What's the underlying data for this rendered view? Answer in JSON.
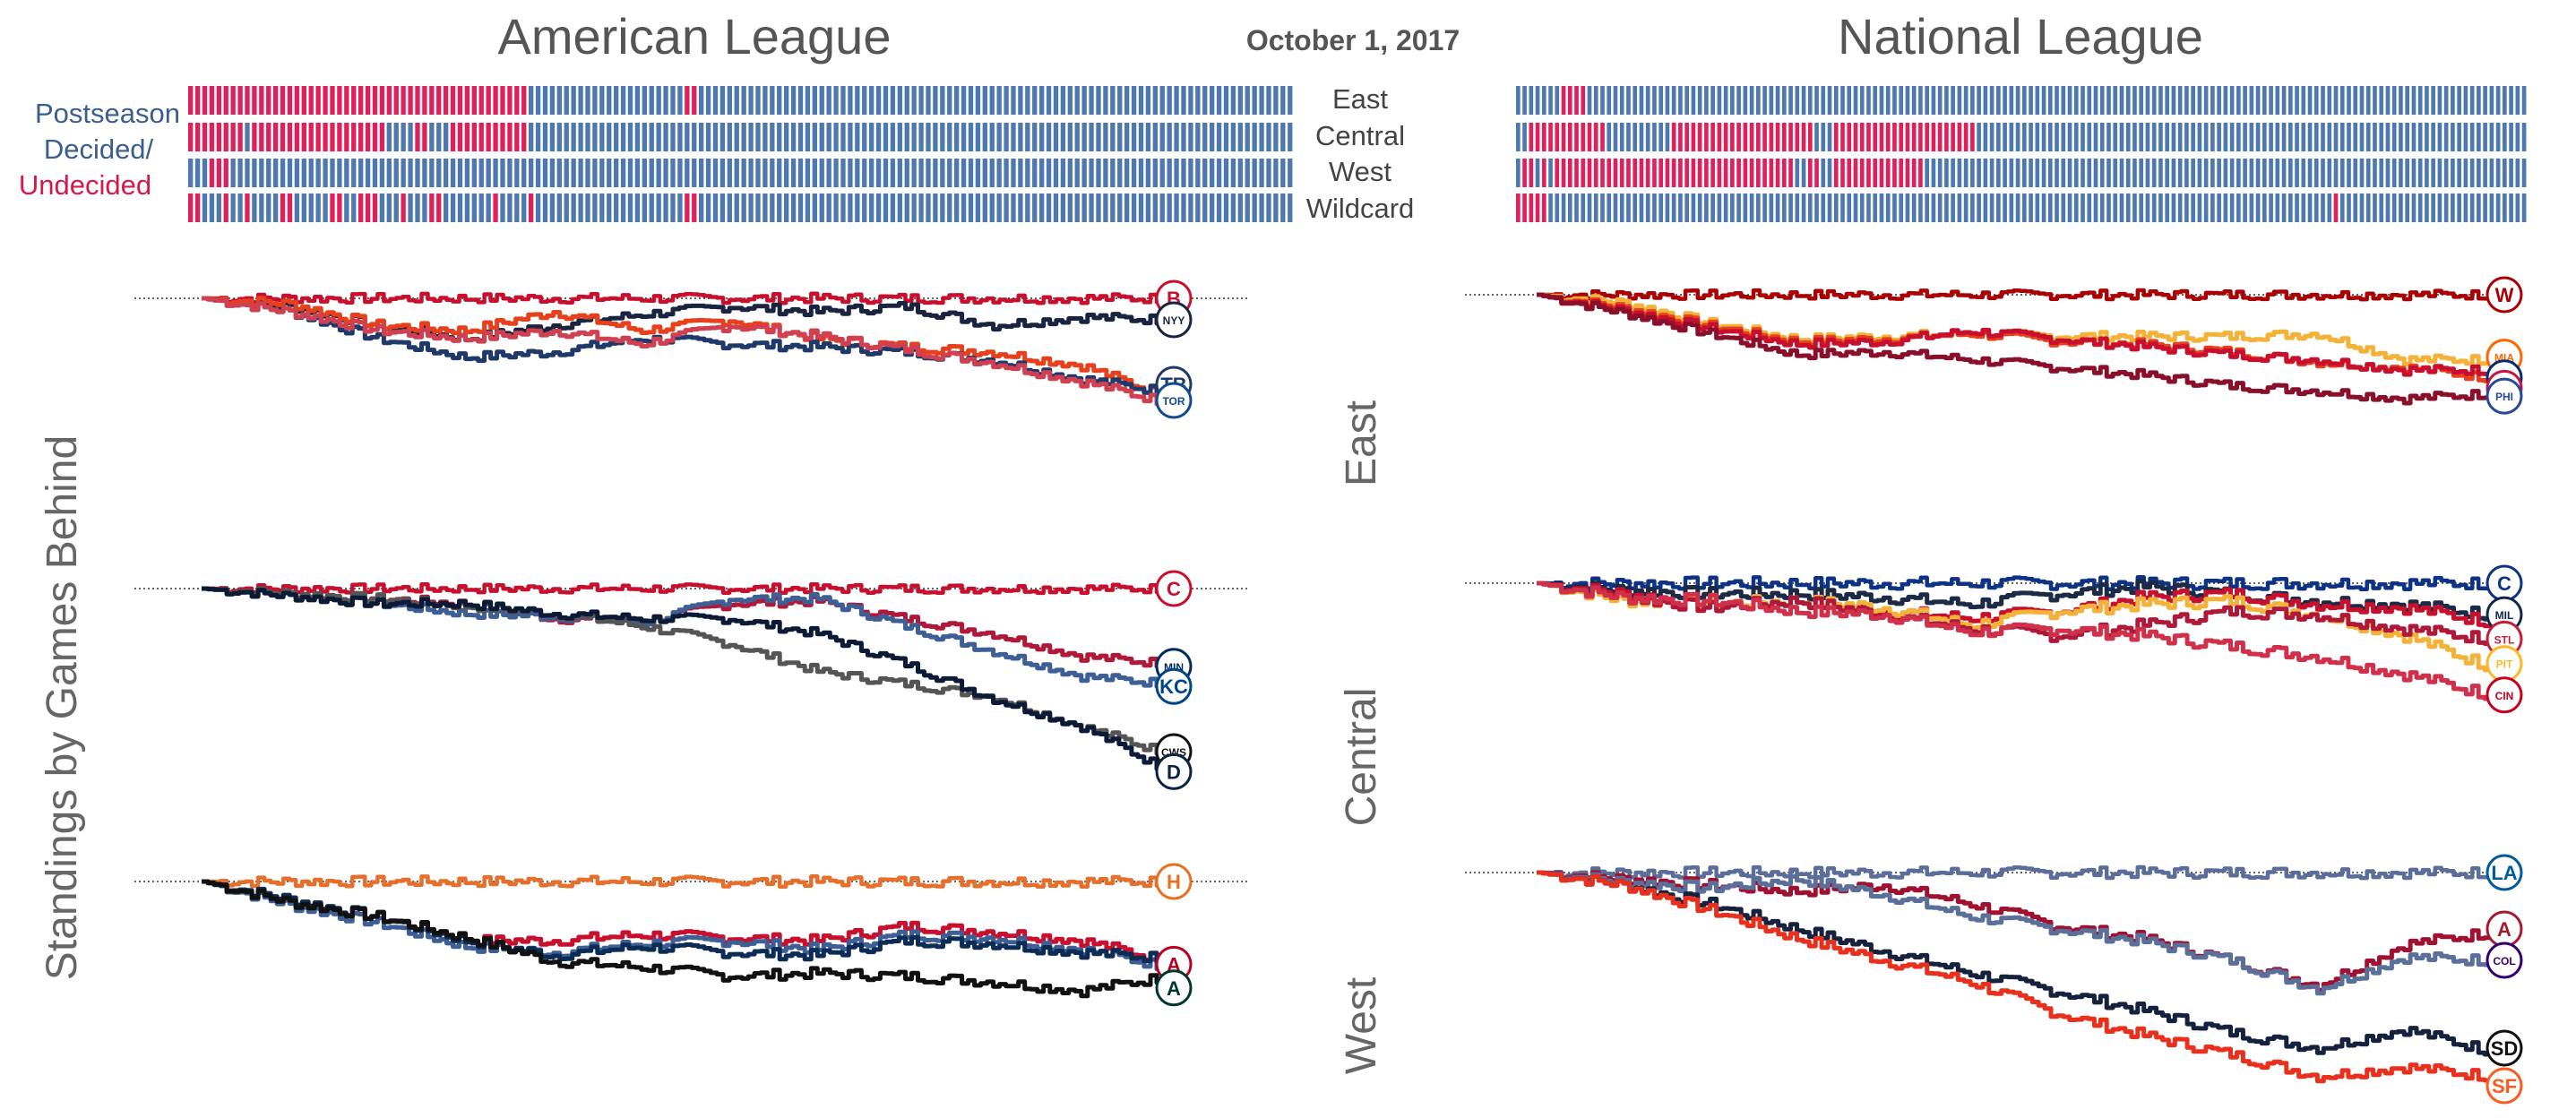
{
  "header": {
    "al_title": "American League",
    "nl_title": "National League",
    "date": "October 1, 2017"
  },
  "legend": {
    "line1": "Postseason",
    "line2": "Decided/",
    "line3": "Undecided"
  },
  "rows": [
    "East",
    "Central",
    "West",
    "Wildcard"
  ],
  "y_label": "Standings by Games Behind",
  "division_labels": [
    "East",
    "Central",
    "West"
  ],
  "colors": {
    "decided": "#4e79b0",
    "undecided": "#e0205a",
    "zero_line": "#333333"
  },
  "chart_data": [
    {
      "type": "heatmap",
      "title": "American League",
      "rows": [
        "East",
        "Central",
        "West",
        "Wildcard"
      ],
      "legend": [
        "Decided",
        "Undecided"
      ],
      "undecided_days": [
        [
          [
            1,
            48
          ],
          [
            71,
            72
          ]
        ],
        [
          [
            1,
            8
          ],
          [
            10,
            28
          ],
          [
            33,
            34
          ],
          [
            38,
            48
          ]
        ],
        [
          [
            4,
            6
          ]
        ],
        [
          [
            1,
            2
          ],
          [
            6,
            6
          ],
          [
            9,
            9
          ],
          [
            14,
            15
          ],
          [
            21,
            22
          ],
          [
            25,
            27
          ],
          [
            31,
            31
          ],
          [
            35,
            36
          ],
          [
            44,
            44
          ],
          [
            49,
            49
          ],
          [
            71,
            72
          ]
        ]
      ],
      "days": 156
    },
    {
      "type": "heatmap",
      "title": "National League",
      "rows": [
        "East",
        "Central",
        "West",
        "Wildcard"
      ],
      "legend": [
        "Decided",
        "Undecided"
      ],
      "undecided_days": [
        [
          [
            8,
            11
          ]
        ],
        [
          [
            3,
            14
          ],
          [
            25,
            46
          ],
          [
            50,
            71
          ]
        ],
        [
          [
            2,
            3
          ],
          [
            5,
            5
          ],
          [
            7,
            43
          ],
          [
            46,
            47
          ],
          [
            50,
            63
          ]
        ],
        [
          [
            1,
            5
          ],
          [
            127,
            127
          ]
        ]
      ],
      "days": 156
    },
    {
      "type": "line",
      "league": "American League",
      "division": "East",
      "series": [
        {
          "color": "#c8102e",
          "values": [
            0,
            0,
            0,
            0,
            0,
            0,
            0,
            0,
            0,
            0,
            0,
            0
          ]
        },
        {
          "color": "#1a2440",
          "values": [
            0,
            -0.3,
            -1,
            -1.5,
            -1,
            -0.6,
            -0.3,
            -0.5,
            -0.3,
            -1,
            -0.7,
            -0.8
          ]
        },
        {
          "color": "#e8401c",
          "values": [
            0,
            -0.2,
            -1,
            -1.2,
            -0.5,
            -1.2,
            -0.8,
            -1.5,
            -1.8,
            -2,
            -2.5,
            -3.7
          ]
        },
        {
          "color": "#20396b",
          "values": [
            0,
            -0.5,
            -1.5,
            -2.2,
            -2,
            -1.5,
            -1.7,
            -1.8,
            -2,
            -2.3,
            -3,
            -3.5
          ]
        },
        {
          "color": "#d04050",
          "values": [
            0,
            -0.5,
            -1.2,
            -1.5,
            -1.2,
            -1.7,
            -1,
            -1.4,
            -1.9,
            -2.4,
            -3.1,
            -3.9
          ]
        }
      ],
      "end_logos": [
        {
          "text": "B",
          "color": "#c8102e",
          "value": 0
        },
        {
          "text": "NYY",
          "color": "#1a2440",
          "value": -0.8
        },
        {
          "text": "TB",
          "color": "#20396b",
          "value": -3.2
        },
        {
          "text": "TOR",
          "color": "#134a8e",
          "value": -3.8
        }
      ]
    },
    {
      "type": "line",
      "league": "American League",
      "division": "Central",
      "series": [
        {
          "color": "#c8102e",
          "values": [
            0,
            0,
            0,
            0,
            0,
            0,
            0,
            0,
            0,
            0,
            0,
            0
          ]
        },
        {
          "color": "#b0183a",
          "values": [
            0,
            -0.2,
            -0.4,
            -0.6,
            -1.2,
            -1.3,
            -0.6,
            -0.5,
            -1.2,
            -1.8,
            -2.7,
            -3
          ]
        },
        {
          "color": "#3e5f95",
          "values": [
            0,
            -0.3,
            -0.6,
            -1,
            -1.1,
            -1.4,
            -0.4,
            -0.4,
            -1.5,
            -2.5,
            -3.5,
            -3.8
          ]
        },
        {
          "color": "#555555",
          "values": [
            0,
            -0.2,
            -0.4,
            -0.7,
            -1,
            -1.5,
            -2.2,
            -3.3,
            -3.8,
            -4.3,
            -5.5,
            -6.6
          ]
        },
        {
          "color": "#0c1a35",
          "values": [
            0,
            -0.3,
            -0.6,
            -0.6,
            -1,
            -1.2,
            -1.2,
            -1.8,
            -3,
            -4.4,
            -5.5,
            -7.3
          ]
        }
      ],
      "end_logos": [
        {
          "text": "C",
          "color": "#c8102e",
          "value": 0
        },
        {
          "text": "MIN",
          "color": "#002b5c",
          "value": -3.1
        },
        {
          "text": "KC",
          "color": "#004687",
          "value": -3.9
        },
        {
          "text": "CWS",
          "color": "#111111",
          "value": -6.5
        },
        {
          "text": "D",
          "color": "#0c2340",
          "value": -7.3
        }
      ]
    },
    {
      "type": "line",
      "league": "American League",
      "division": "West",
      "series": [
        {
          "color": "#e76f2c",
          "values": [
            0,
            0,
            0,
            0,
            0,
            0,
            0,
            0,
            0,
            0,
            0,
            0
          ]
        },
        {
          "color": "#c8102e",
          "values": [
            0,
            -0.7,
            -1.2,
            -2,
            -2,
            -1.8,
            -1.9,
            -2,
            -1.5,
            -1.7,
            -2,
            -2.7
          ]
        },
        {
          "color": "#3e5f95",
          "values": [
            0,
            -0.8,
            -1.4,
            -2.2,
            -2.4,
            -2.1,
            -2,
            -2.3,
            -1.8,
            -1.9,
            -2.3,
            -2.9
          ]
        },
        {
          "color": "#0c2c56",
          "values": [
            0,
            -0.6,
            -1.2,
            -2,
            -2.5,
            -2.2,
            -2.4,
            -2.5,
            -2,
            -2.1,
            -2.4,
            -2.6
          ]
        },
        {
          "color": "#111111",
          "values": [
            0,
            -0.7,
            -1.2,
            -1.9,
            -2.7,
            -2.9,
            -3.2,
            -3.1,
            -3.2,
            -3.4,
            -3.7,
            -3.2
          ]
        }
      ],
      "end_logos": [
        {
          "text": "H",
          "color": "#eb6e1f",
          "value": 0
        },
        {
          "text": "A",
          "color": "#ba0021",
          "value": -2.8
        },
        {
          "text": "A",
          "color": "#003831",
          "value": -3.6
        }
      ]
    },
    {
      "type": "line",
      "league": "National League",
      "division": "East",
      "series": [
        {
          "color": "#ab0003",
          "values": [
            0,
            0,
            0,
            0,
            0,
            0,
            0,
            0,
            0,
            0,
            0,
            0
          ]
        },
        {
          "color": "#f4b338",
          "values": [
            0,
            -0.3,
            -1.1,
            -1.7,
            -1.6,
            -1.5,
            -1.6,
            -1.6,
            -1.6,
            -1.5,
            -2.5,
            -2.5
          ]
        },
        {
          "color": "#e8401c",
          "values": [
            0,
            -0.5,
            -1.2,
            -1.8,
            -1.7,
            -1.5,
            -1.8,
            -1.9,
            -2.2,
            -2.6,
            -2.8,
            -3.2
          ]
        },
        {
          "color": "#c8102e",
          "values": [
            0,
            -0.6,
            -1.3,
            -1.9,
            -1.8,
            -1.4,
            -1.7,
            -2,
            -2.3,
            -2.5,
            -2.9,
            -2.9
          ]
        },
        {
          "color": "#8a0f2a",
          "values": [
            0,
            -0.7,
            -1.5,
            -2.3,
            -2.2,
            -2.5,
            -2.8,
            -3.1,
            -3.5,
            -3.7,
            -4,
            -3.8
          ]
        }
      ],
      "end_logos": [
        {
          "text": "W",
          "color": "#ab0003",
          "value": 0
        },
        {
          "text": "MIA",
          "color": "#ff6600",
          "value": -2.4
        },
        {
          "text": "NYM",
          "color": "#002d72",
          "value": -3.2
        },
        {
          "text": "ATL",
          "color": "#ce1141",
          "value": -3.6
        },
        {
          "text": "PHI",
          "color": "#284898",
          "value": -3.9
        }
      ]
    },
    {
      "type": "line",
      "league": "National League",
      "division": "Central",
      "series": [
        {
          "color": "#0e3386",
          "values": [
            0,
            0,
            0,
            0,
            0,
            0,
            0,
            0,
            0,
            0,
            0,
            0
          ]
        },
        {
          "color": "#1d2a45",
          "values": [
            0,
            -0.2,
            -0.3,
            -0.3,
            -0.4,
            -0.6,
            -0.3,
            -0.1,
            -0.3,
            -0.5,
            -0.6,
            -0.9
          ]
        },
        {
          "color": "#c8102e",
          "values": [
            0,
            -0.3,
            -0.6,
            -0.5,
            -0.8,
            -1,
            -0.8,
            -0.4,
            -0.3,
            -0.6,
            -0.7,
            -1.1
          ]
        },
        {
          "color": "#f4b338",
          "values": [
            0,
            -0.5,
            -0.6,
            -0.5,
            -0.7,
            -1.2,
            -0.8,
            -0.6,
            -0.5,
            -0.9,
            -1.5,
            -2.4
          ]
        },
        {
          "color": "#b0183a",
          "values": [
            0,
            -0.4,
            -0.7,
            -0.5,
            -0.9,
            -1.3,
            -1.5,
            -1.2,
            -0.8,
            -0.9,
            -1.3,
            -1.6
          ]
        },
        {
          "color": "#d0304a",
          "values": [
            0,
            -0.4,
            -0.5,
            -0.8,
            -0.9,
            -1.4,
            -1.3,
            -1.5,
            -1.8,
            -2.1,
            -2.6,
            -3.2
          ]
        }
      ],
      "end_logos": [
        {
          "text": "C",
          "color": "#0e3386",
          "value": 0
        },
        {
          "text": "MIL",
          "color": "#12284b",
          "value": -0.9
        },
        {
          "text": "STL",
          "color": "#c41e3a",
          "value": -1.6
        },
        {
          "text": "PIT",
          "color": "#fdb827",
          "value": -2.3
        },
        {
          "text": "CIN",
          "color": "#c6011f",
          "value": -3.2
        }
      ]
    },
    {
      "type": "line",
      "league": "National League",
      "division": "West",
      "series": [
        {
          "color": "#5b6d9a",
          "values": [
            0,
            0,
            0,
            0,
            0,
            0,
            0,
            0,
            0,
            0,
            0,
            0
          ]
        },
        {
          "color": "#a01030",
          "values": [
            0,
            -0.2,
            -0.4,
            -0.6,
            -0.4,
            -1,
            -1.7,
            -2.1,
            -2.8,
            -3.6,
            -2.3,
            -1.9
          ]
        },
        {
          "color": "#5a6f99",
          "values": [
            0,
            -0.3,
            -0.5,
            -0.2,
            -0.7,
            -1.4,
            -1.8,
            -2.2,
            -2.8,
            -3.7,
            -2.7,
            -2.8
          ]
        },
        {
          "color": "#16213e",
          "values": [
            0,
            -0.4,
            -1,
            -1.8,
            -2.5,
            -3.2,
            -3.8,
            -4.4,
            -5.1,
            -5.6,
            -5,
            -5.7
          ]
        },
        {
          "color": "#e8301c",
          "values": [
            0,
            -0.4,
            -1.2,
            -2.1,
            -2.8,
            -3.5,
            -4.5,
            -5.2,
            -5.8,
            -6.5,
            -6.2,
            -6.5
          ]
        }
      ],
      "end_logos": [
        {
          "text": "LA",
          "color": "#005a9c",
          "value": 0
        },
        {
          "text": "A",
          "color": "#a71930",
          "value": -1.8
        },
        {
          "text": "COL",
          "color": "#33006f",
          "value": -2.8
        },
        {
          "text": "SD",
          "color": "#111111",
          "value": -5.6
        },
        {
          "text": "SF",
          "color": "#fd5a1e",
          "value": -6.8
        }
      ]
    }
  ]
}
